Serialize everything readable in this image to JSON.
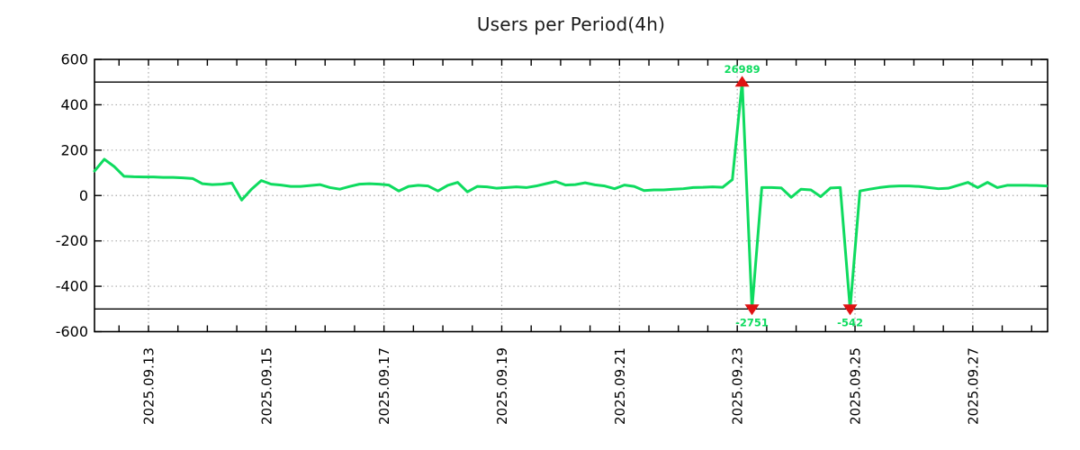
{
  "title": "Users per Period(4h)",
  "chart_data": {
    "type": "line",
    "title": "Users per Period(4h)",
    "xlabel": "",
    "ylabel": "",
    "y_domain": [
      -600,
      600
    ],
    "clip_limit": 500,
    "grid": true,
    "legend": "none",
    "line_color": "#0edb5f",
    "marker_color": "#de1212",
    "annotation_color": "#0edb5f",
    "period_hours": 4,
    "points_start_hour": 2,
    "x_domain_hours": [
      2,
      390.5
    ],
    "x_minor_tick_hours": 12,
    "x_ticks": [
      {
        "hours": 24,
        "label": "2025.09.13"
      },
      {
        "hours": 72,
        "label": "2025.09.15"
      },
      {
        "hours": 120,
        "label": "2025.09.17"
      },
      {
        "hours": 168,
        "label": "2025.09.19"
      },
      {
        "hours": 216,
        "label": "2025.09.21"
      },
      {
        "hours": 264,
        "label": "2025.09.23"
      },
      {
        "hours": 312,
        "label": "2025.09.25"
      },
      {
        "hours": 360,
        "label": "2025.09.27"
      }
    ],
    "y_ticks": [
      {
        "value": 600,
        "label": "600"
      },
      {
        "value": 400,
        "label": "400"
      },
      {
        "value": 200,
        "label": "200"
      },
      {
        "value": 0,
        "label": "0"
      },
      {
        "value": -200,
        "label": "-200"
      },
      {
        "value": -400,
        "label": "-400"
      },
      {
        "value": -600,
        "label": "-600"
      }
    ],
    "values": [
      108,
      160,
      128,
      85,
      83,
      82,
      82,
      80,
      80,
      78,
      75,
      52,
      48,
      50,
      55,
      -20,
      28,
      66,
      50,
      46,
      40,
      40,
      44,
      48,
      35,
      28,
      40,
      50,
      52,
      50,
      46,
      20,
      40,
      45,
      42,
      20,
      45,
      58,
      16,
      40,
      38,
      32,
      35,
      38,
      35,
      42,
      52,
      62,
      46,
      48,
      56,
      47,
      42,
      30,
      46,
      40,
      22,
      25,
      25,
      28,
      30,
      35,
      36,
      38,
      36,
      70,
      26989,
      -2751,
      35,
      35,
      33,
      -8,
      28,
      25,
      -5,
      33,
      35,
      -542,
      20,
      28,
      35,
      40,
      42,
      42,
      40,
      35,
      30,
      32,
      45,
      58,
      35,
      58,
      35,
      45,
      45,
      45,
      44,
      42
    ],
    "annotations": [
      {
        "hours": 266,
        "value": 26989,
        "label": "26989",
        "direction": "up"
      },
      {
        "hours": 270,
        "value": -2751,
        "label": "-2751",
        "direction": "down"
      },
      {
        "hours": 310,
        "value": -542,
        "label": "-542",
        "direction": "down"
      }
    ]
  }
}
